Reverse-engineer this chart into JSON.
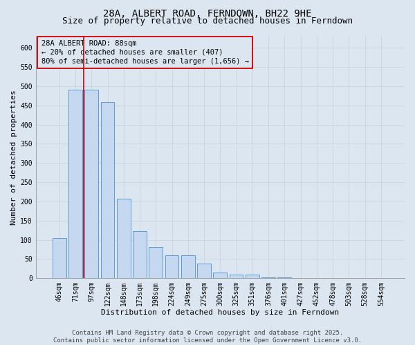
{
  "title_line1": "28A, ALBERT ROAD, FERNDOWN, BH22 9HE",
  "title_line2": "Size of property relative to detached houses in Ferndown",
  "xlabel": "Distribution of detached houses by size in Ferndown",
  "ylabel": "Number of detached properties",
  "categories": [
    "46sqm",
    "71sqm",
    "97sqm",
    "122sqm",
    "148sqm",
    "173sqm",
    "198sqm",
    "224sqm",
    "249sqm",
    "275sqm",
    "300sqm",
    "325sqm",
    "351sqm",
    "376sqm",
    "401sqm",
    "427sqm",
    "452sqm",
    "478sqm",
    "503sqm",
    "528sqm",
    "554sqm"
  ],
  "values": [
    105,
    490,
    490,
    458,
    207,
    122,
    82,
    59,
    59,
    38,
    14,
    10,
    10,
    2,
    2,
    1,
    0,
    0,
    0,
    0,
    0
  ],
  "bar_color": "#c5d8f0",
  "bar_edge_color": "#5b9bd5",
  "grid_color": "#c8d4e0",
  "background_color": "#dce6f0",
  "vline_color": "#cc0000",
  "vline_x_index": 2,
  "annotation_text": "28A ALBERT ROAD: 88sqm\n← 20% of detached houses are smaller (407)\n80% of semi-detached houses are larger (1,656) →",
  "annotation_box_color": "#cc0000",
  "ylim": [
    0,
    630
  ],
  "yticks": [
    0,
    50,
    100,
    150,
    200,
    250,
    300,
    350,
    400,
    450,
    500,
    550,
    600
  ],
  "footer_text": "Contains HM Land Registry data © Crown copyright and database right 2025.\nContains public sector information licensed under the Open Government Licence v3.0.",
  "title_fontsize": 10,
  "subtitle_fontsize": 9,
  "axis_label_fontsize": 8,
  "tick_fontsize": 7,
  "annotation_fontsize": 7.5,
  "footer_fontsize": 6.5
}
